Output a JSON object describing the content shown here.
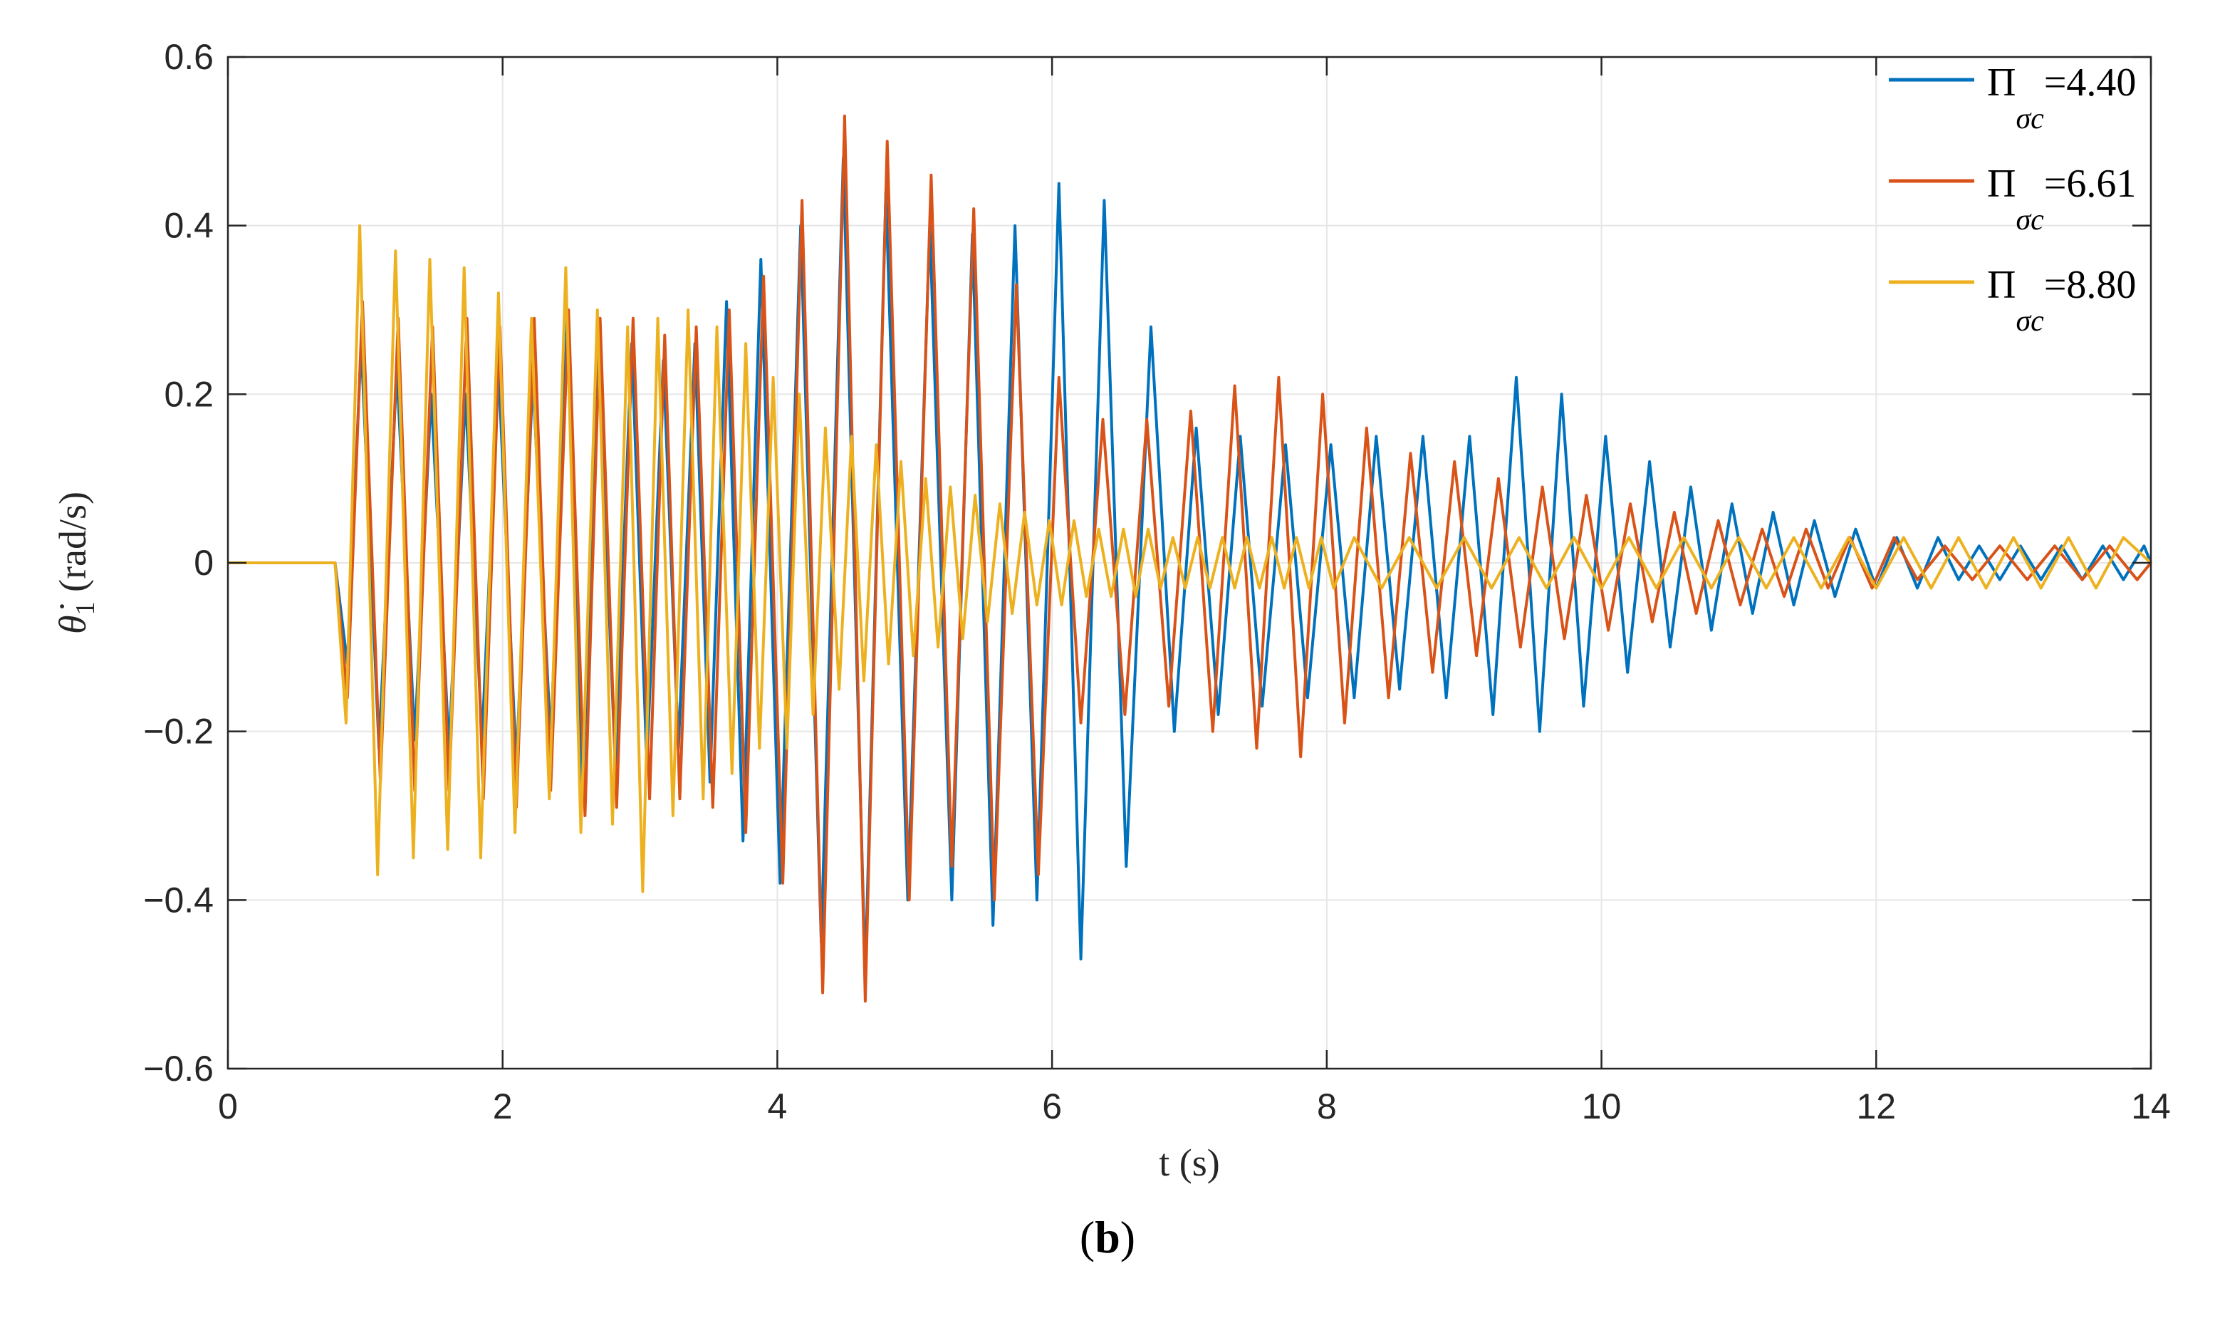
{
  "chart_data": {
    "type": "line",
    "xlabel": "t (s)",
    "ylabel_symbol": "θ̇",
    "ylabel_subscript": "1",
    "ylabel_unit": "(rad/s)",
    "xlim": [
      0,
      14
    ],
    "ylim": [
      -0.6,
      0.6
    ],
    "xticks": [
      0,
      2,
      4,
      6,
      8,
      10,
      12,
      14
    ],
    "xtick_labels": [
      "0",
      "2",
      "4",
      "6",
      "8",
      "10",
      "12",
      "14"
    ],
    "yticks": [
      -0.6,
      -0.4,
      -0.2,
      0,
      0.2,
      0.4,
      0.6
    ],
    "ytick_labels": [
      "−0.6",
      "−0.4",
      "−0.2",
      "0",
      "0.2",
      "0.4",
      "0.6"
    ],
    "grid": true,
    "legend_position": "top-right",
    "series": [
      {
        "name": "Π_σc=4.40",
        "name_symbol": "Π",
        "name_subscript": "σc",
        "name_value": "=4.40",
        "color": "#0072BD",
        "x": [
          0,
          0.78,
          0.87,
          0.97,
          1.1,
          1.23,
          1.36,
          1.48,
          1.61,
          1.73,
          1.85,
          1.97,
          2.1,
          2.22,
          2.35,
          2.47,
          2.58,
          2.7,
          2.82,
          2.94,
          3.05,
          3.17,
          3.28,
          3.4,
          3.51,
          3.63,
          3.75,
          3.88,
          4.02,
          4.17,
          4.32,
          4.48,
          4.64,
          4.79,
          4.95,
          5.11,
          5.27,
          5.42,
          5.57,
          5.73,
          5.89,
          6.05,
          6.21,
          6.38,
          6.54,
          6.72,
          6.89,
          7.05,
          7.21,
          7.37,
          7.53,
          7.7,
          7.86,
          8.03,
          8.2,
          8.36,
          8.53,
          8.7,
          8.87,
          9.04,
          9.21,
          9.38,
          9.55,
          9.71,
          9.87,
          10.03,
          10.19,
          10.35,
          10.5,
          10.65,
          10.8,
          10.95,
          11.1,
          11.25,
          11.4,
          11.55,
          11.7,
          11.85,
          12.0,
          12.15,
          12.3,
          12.45,
          12.6,
          12.75,
          12.9,
          13.05,
          13.2,
          13.35,
          13.5,
          13.65,
          13.8,
          13.95,
          14.0
        ],
        "values": [
          0,
          0,
          -0.12,
          0.26,
          -0.22,
          0.23,
          -0.21,
          0.2,
          -0.22,
          0.2,
          -0.21,
          0.23,
          -0.24,
          0.22,
          -0.21,
          0.29,
          -0.28,
          0.25,
          -0.24,
          0.26,
          -0.24,
          0.24,
          -0.22,
          0.26,
          -0.26,
          0.31,
          -0.33,
          0.36,
          -0.38,
          0.4,
          -0.45,
          0.48,
          -0.49,
          0.44,
          -0.4,
          0.4,
          -0.4,
          0.39,
          -0.43,
          0.4,
          -0.4,
          0.45,
          -0.47,
          0.43,
          -0.36,
          0.28,
          -0.2,
          0.16,
          -0.18,
          0.15,
          -0.17,
          0.14,
          -0.16,
          0.14,
          -0.16,
          0.15,
          -0.15,
          0.15,
          -0.16,
          0.15,
          -0.18,
          0.22,
          -0.2,
          0.2,
          -0.17,
          0.15,
          -0.13,
          0.12,
          -0.1,
          0.09,
          -0.08,
          0.07,
          -0.06,
          0.06,
          -0.05,
          0.05,
          -0.04,
          0.04,
          -0.03,
          0.03,
          -0.03,
          0.03,
          -0.02,
          0.02,
          -0.02,
          0.02,
          -0.02,
          0.02,
          -0.02,
          0.02,
          -0.02,
          0.02,
          0
        ]
      },
      {
        "name": "Π_σc=6.61",
        "name_symbol": "Π",
        "name_subscript": "σc",
        "name_value": "=6.61",
        "color": "#D95319",
        "x": [
          0,
          0.78,
          0.87,
          0.98,
          1.11,
          1.24,
          1.36,
          1.49,
          1.61,
          1.74,
          1.86,
          1.98,
          2.1,
          2.23,
          2.35,
          2.48,
          2.6,
          2.71,
          2.83,
          2.95,
          3.07,
          3.18,
          3.29,
          3.41,
          3.53,
          3.65,
          3.77,
          3.9,
          4.04,
          4.18,
          4.33,
          4.49,
          4.64,
          4.8,
          4.96,
          5.12,
          5.27,
          5.43,
          5.58,
          5.74,
          5.9,
          6.05,
          6.21,
          6.37,
          6.53,
          6.69,
          6.85,
          7.01,
          7.17,
          7.33,
          7.49,
          7.65,
          7.81,
          7.97,
          8.13,
          8.29,
          8.45,
          8.61,
          8.77,
          8.93,
          9.09,
          9.25,
          9.41,
          9.57,
          9.73,
          9.89,
          10.05,
          10.21,
          10.37,
          10.53,
          10.69,
          10.85,
          11.01,
          11.17,
          11.33,
          11.49,
          11.65,
          11.81,
          11.97,
          12.13,
          12.3,
          12.5,
          12.7,
          12.9,
          13.1,
          13.3,
          13.5,
          13.7,
          13.9,
          14.0
        ],
        "values": [
          0,
          0,
          -0.16,
          0.31,
          -0.26,
          0.29,
          -0.27,
          0.28,
          -0.27,
          0.29,
          -0.28,
          0.28,
          -0.29,
          0.29,
          -0.27,
          0.3,
          -0.3,
          0.29,
          -0.29,
          0.29,
          -0.28,
          0.27,
          -0.28,
          0.28,
          -0.29,
          0.3,
          -0.32,
          0.34,
          -0.38,
          0.43,
          -0.51,
          0.53,
          -0.52,
          0.5,
          -0.4,
          0.46,
          -0.36,
          0.42,
          -0.4,
          0.33,
          -0.37,
          0.22,
          -0.19,
          0.17,
          -0.18,
          0.17,
          -0.17,
          0.18,
          -0.2,
          0.21,
          -0.22,
          0.22,
          -0.23,
          0.2,
          -0.19,
          0.16,
          -0.16,
          0.13,
          -0.13,
          0.12,
          -0.11,
          0.1,
          -0.1,
          0.09,
          -0.09,
          0.08,
          -0.08,
          0.07,
          -0.07,
          0.06,
          -0.06,
          0.05,
          -0.05,
          0.04,
          -0.04,
          0.04,
          -0.03,
          0.03,
          -0.03,
          0.03,
          -0.02,
          0.02,
          -0.02,
          0.02,
          -0.02,
          0.02,
          -0.02,
          0.02,
          -0.02,
          0
        ]
      },
      {
        "name": "Π_σc=8.80",
        "name_symbol": "Π",
        "name_subscript": "σc",
        "name_value": "=8.80",
        "color": "#EDB120",
        "x": [
          0,
          0.78,
          0.86,
          0.96,
          1.09,
          1.22,
          1.35,
          1.47,
          1.6,
          1.72,
          1.84,
          1.97,
          2.09,
          2.21,
          2.34,
          2.46,
          2.57,
          2.69,
          2.8,
          2.91,
          3.02,
          3.13,
          3.24,
          3.35,
          3.46,
          3.56,
          3.67,
          3.77,
          3.87,
          3.97,
          4.07,
          4.16,
          4.26,
          4.35,
          4.45,
          4.54,
          4.63,
          4.72,
          4.81,
          4.9,
          4.99,
          5.08,
          5.17,
          5.26,
          5.35,
          5.44,
          5.53,
          5.62,
          5.71,
          5.8,
          5.89,
          5.98,
          6.07,
          6.16,
          6.25,
          6.34,
          6.43,
          6.52,
          6.61,
          6.7,
          6.79,
          6.88,
          6.97,
          7.06,
          7.15,
          7.24,
          7.33,
          7.42,
          7.51,
          7.6,
          7.69,
          7.78,
          7.87,
          7.96,
          8.05,
          8.2,
          8.4,
          8.6,
          8.8,
          9.0,
          9.2,
          9.4,
          9.6,
          9.8,
          10.0,
          10.2,
          10.4,
          10.6,
          10.8,
          11.0,
          11.2,
          11.4,
          11.6,
          11.8,
          12.0,
          12.2,
          12.4,
          12.6,
          12.8,
          13.0,
          13.2,
          13.4,
          13.6,
          13.8,
          14.0
        ],
        "values": [
          0,
          0,
          -0.19,
          0.4,
          -0.37,
          0.37,
          -0.35,
          0.36,
          -0.34,
          0.35,
          -0.35,
          0.32,
          -0.32,
          0.29,
          -0.28,
          0.35,
          -0.32,
          0.3,
          -0.31,
          0.28,
          -0.39,
          0.29,
          -0.3,
          0.3,
          -0.28,
          0.28,
          -0.25,
          0.26,
          -0.22,
          0.22,
          -0.22,
          0.2,
          -0.18,
          0.16,
          -0.15,
          0.15,
          -0.14,
          0.14,
          -0.12,
          0.12,
          -0.11,
          0.1,
          -0.1,
          0.09,
          -0.09,
          0.08,
          -0.07,
          0.07,
          -0.06,
          0.06,
          -0.05,
          0.05,
          -0.05,
          0.05,
          -0.04,
          0.04,
          -0.04,
          0.04,
          -0.04,
          0.04,
          -0.03,
          0.03,
          -0.03,
          0.03,
          -0.03,
          0.03,
          -0.03,
          0.03,
          -0.03,
          0.03,
          -0.03,
          0.03,
          -0.03,
          0.03,
          -0.03,
          0.03,
          -0.03,
          0.03,
          -0.03,
          0.03,
          -0.03,
          0.03,
          -0.03,
          0.03,
          -0.03,
          0.03,
          -0.03,
          0.03,
          -0.03,
          0.03,
          -0.03,
          0.03,
          -0.03,
          0.03,
          -0.03,
          0.03,
          -0.03,
          0.03,
          -0.03,
          0.03,
          -0.03,
          0.03,
          -0.03,
          0.03,
          0
        ]
      }
    ]
  },
  "caption": {
    "open": "(",
    "letter": "b",
    "close": ")"
  }
}
